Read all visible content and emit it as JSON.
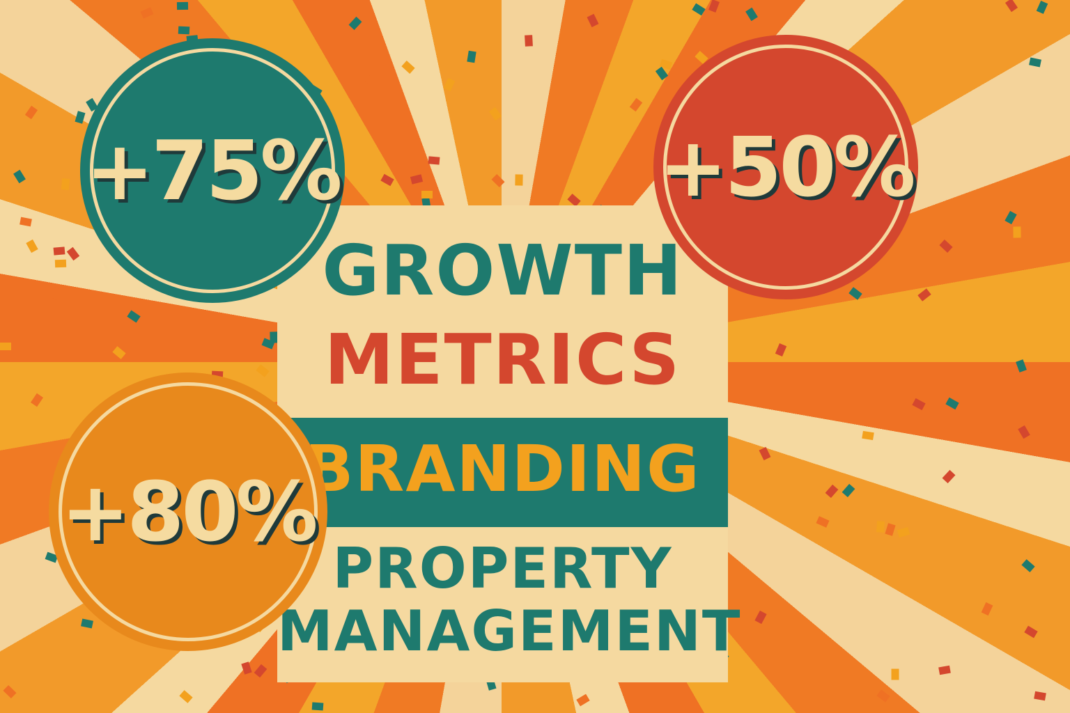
{
  "colors": {
    "teal": "#1e7a6e",
    "red": "#d4472e",
    "orange": "#e8891c",
    "cream": "#f5d9a0",
    "yellow": "#f3a11e"
  },
  "badges": [
    {
      "value": "+75%",
      "color": "#1e7a6e"
    },
    {
      "value": "+50%",
      "color": "#d4472e"
    },
    {
      "value": "+80%",
      "color": "#e8891c"
    }
  ],
  "headline": {
    "line1": "GROWTH",
    "line2": "METRICS"
  },
  "band": {
    "label": "BRANDING"
  },
  "subtitle": {
    "line1": "PROPERTY",
    "line2": "MANAGEMENT"
  }
}
